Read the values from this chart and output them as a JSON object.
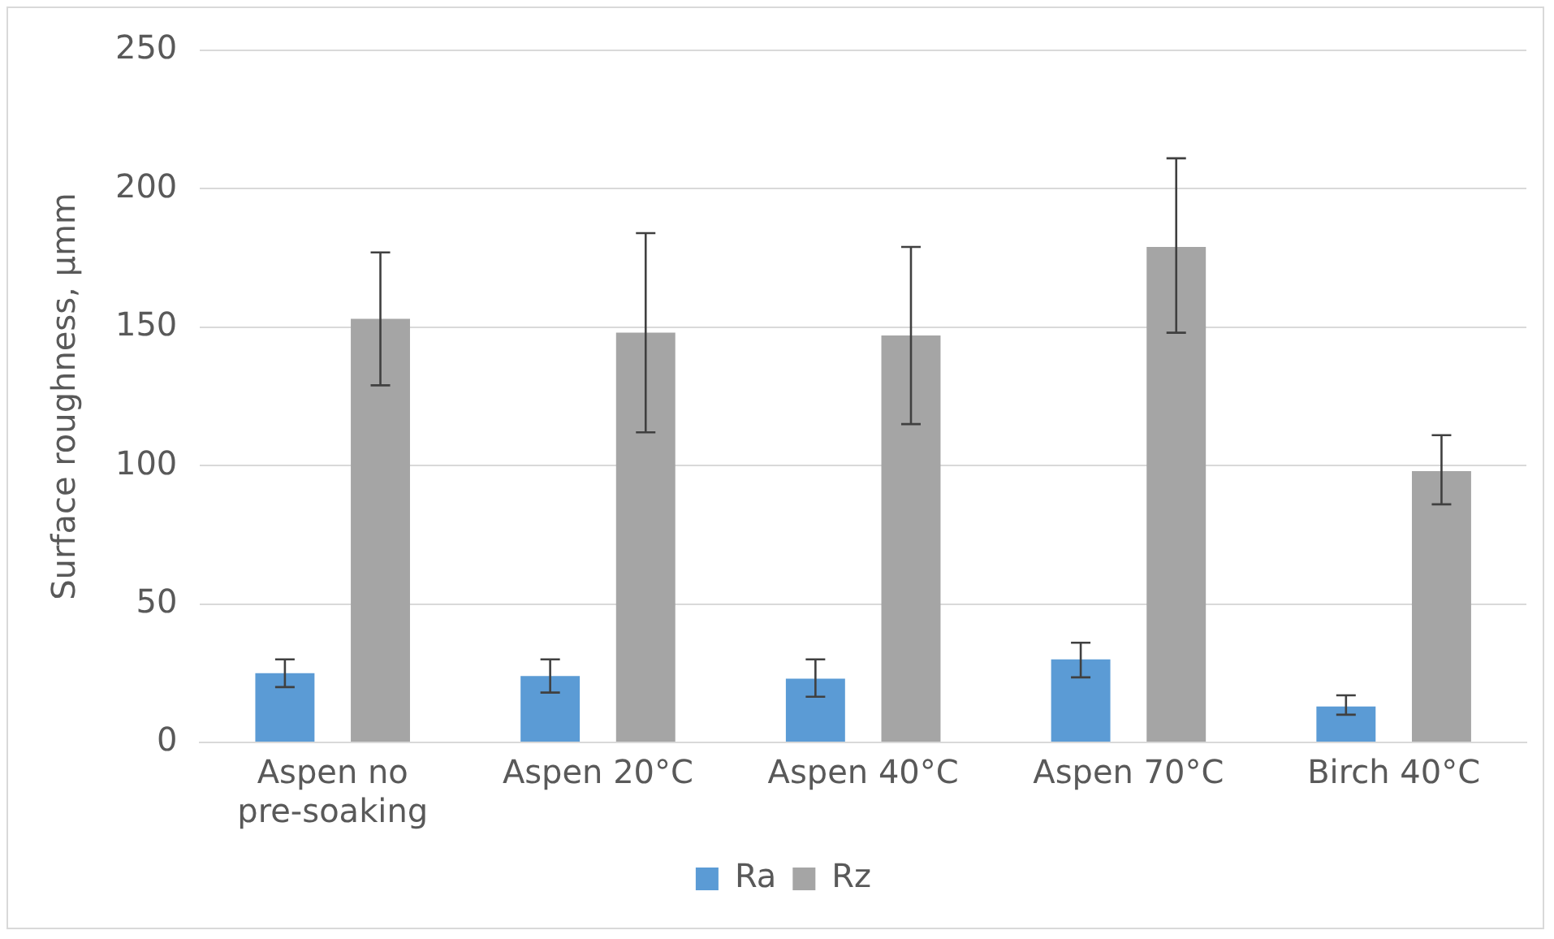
{
  "chart_data": {
    "type": "bar",
    "ylabel": "Surface roughness, μmm",
    "categories": [
      "Aspen no pre-soaking",
      "Aspen 20°C",
      "Aspen 40°C",
      "Aspen 70°C",
      "Birch 40°C"
    ],
    "series": [
      {
        "name": "Ra",
        "color": "#5b9bd5",
        "values": [
          25,
          24,
          23,
          30,
          13
        ],
        "errors": [
          [
            20,
            30
          ],
          [
            18,
            30
          ],
          [
            16.5,
            30
          ],
          [
            23.5,
            36
          ],
          [
            10,
            17
          ]
        ]
      },
      {
        "name": "Rz",
        "color": "#a5a5a5",
        "values": [
          153,
          148,
          147,
          179,
          98
        ],
        "errors": [
          [
            129,
            177
          ],
          [
            112,
            184
          ],
          [
            115,
            179
          ],
          [
            148,
            211
          ],
          [
            86,
            111
          ]
        ]
      }
    ],
    "ylim": [
      0,
      250
    ],
    "yticks": [
      0,
      50,
      100,
      150,
      200,
      250
    ],
    "grid": "y",
    "legend": "bottom"
  }
}
